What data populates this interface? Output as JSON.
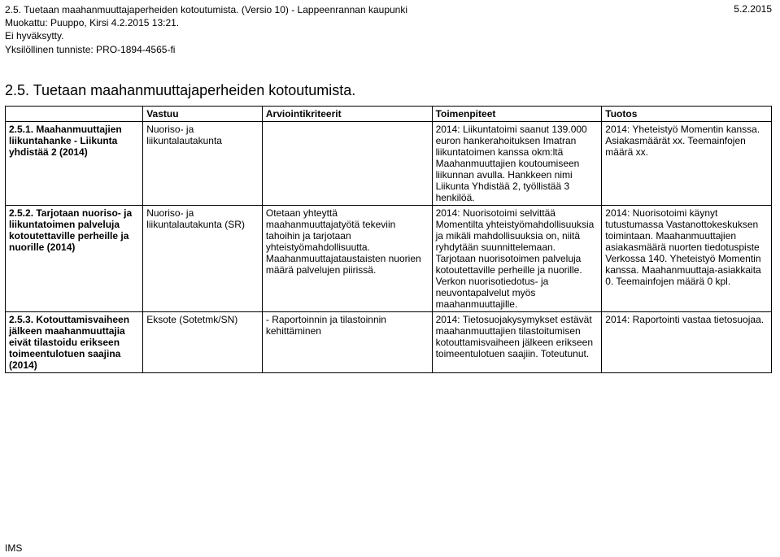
{
  "header": {
    "line1": "2.5. Tuetaan maahanmuuttajaperheiden kotoutumista. (Versio 10) - Lappeenrannan kaupunki",
    "line2": "Muokattu: Puuppo, Kirsi 4.2.2015 13:21.",
    "line3": "Ei hyväksytty.",
    "line4": "Yksilöllinen tunniste: PRO-1894-4565-fi",
    "date_right": "5.2.2015"
  },
  "section_title": "2.5. Tuetaan maahanmuuttajaperheiden kotoutumista.",
  "columns": {
    "vastuu": "Vastuu",
    "arviointi": "Arviointikriteerit",
    "toimenpiteet": "Toimenpiteet",
    "tuotos": "Tuotos"
  },
  "rows": [
    {
      "label": "2.5.1. Maahanmuuttajien liikuntahanke - Liikunta yhdistää 2 (2014)",
      "vastuu": "Nuoriso- ja liikuntalautakunta",
      "arviointi": "",
      "toimenpiteet": "2014: Liikuntatoimi saanut 139.000 euron hankerahoituksen Imatran liikuntatoimen kanssa okm:ltä Maahanmuuttajien koutoumiseen liikunnan avulla. Hankkeen nimi Liikunta Yhdistää 2, työllistää 3 henkilöä.",
      "tuotos": "2014: Yheteistyö Momentin kanssa. Asiakasmäärät xx. Teemainfojen määrä xx."
    },
    {
      "label": "2.5.2. Tarjotaan nuoriso- ja liikuntatoimen palveluja kotoutettaville perheille ja nuorille (2014)",
      "vastuu": "Nuoriso- ja liikuntalautakunta (SR)",
      "arviointi": "Otetaan yhteyttä maahanmuuttajatyötä tekeviin tahoihin ja tarjotaan yhteistyömahdollisuutta. Maahanmuuttajataustaisten nuorien määrä palvelujen piirissä.",
      "toimenpiteet": "2014: Nuorisotoimi selvittää Momentilta yhteistyömahdollisuuksia ja mikäli mahdollisuuksia on, niitä ryhdytään suunnittelemaan. Tarjotaan nuorisotoimen palveluja kotoutettaville perheille ja nuorille. Verkon nuorisotiedotus- ja neuvontapalvelut myös maahanmuuttajille.",
      "tuotos": "2014: Nuorisotoimi käynyt tutustumassa Vastanottokeskuksen toimintaan. Maahanmuuttajien asiakasmäärä nuorten tiedotuspiste Verkossa 140. Yheteistyö Momentin kanssa. Maahanmuuttaja-asiakkaita 0. Teemainfojen määrä 0 kpl."
    },
    {
      "label": "2.5.3. Kotouttamisvaiheen jälkeen maahanmuuttajia eivät tilastoidu erikseen toimeentulotuen saajina (2014)",
      "vastuu": "Eksote (Sotetmk/SN)",
      "arviointi": "- Raportoinnin ja tilastoinnin kehittäminen",
      "toimenpiteet": "2014: Tietosuojakysymykset estävät maahanmuuttajien tilastoitumisen kotouttamisvaiheen jälkeen erikseen toimeentulotuen saajiin. Toteutunut.",
      "tuotos": "2014: Raportointi vastaa tietosuojaa."
    }
  ],
  "footer": "IMS"
}
